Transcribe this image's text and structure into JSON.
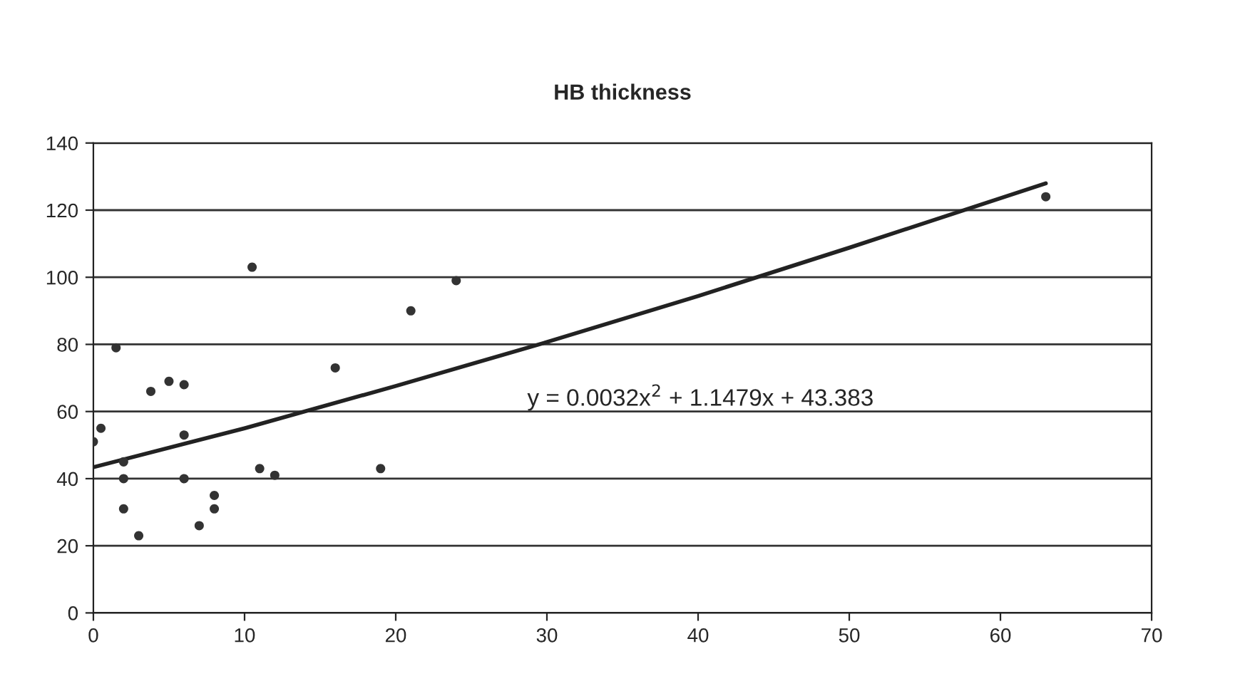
{
  "chart_data": {
    "type": "scatter",
    "title": "HB thickness",
    "xlim": [
      0,
      70
    ],
    "xticks": [
      0,
      10,
      20,
      30,
      40,
      50,
      60,
      70
    ],
    "ylim": [
      0,
      140
    ],
    "yticks": [
      0,
      20,
      40,
      60,
      80,
      100,
      120,
      140
    ],
    "grid": "y",
    "legend": false,
    "series": [
      {
        "marker": "circle",
        "color": "#333333",
        "x": [
          0,
          0.5,
          1.5,
          2,
          2,
          2,
          3,
          3.8,
          5,
          6,
          6,
          6,
          7,
          8,
          8,
          10.5,
          11,
          12,
          16,
          19,
          21,
          24,
          63
        ],
        "values": [
          51,
          55,
          79,
          45,
          40,
          31,
          23,
          66,
          69,
          68,
          53,
          40,
          26,
          35,
          31,
          103,
          43,
          41,
          73,
          43,
          90,
          99,
          124
        ]
      },
      {
        "type": "line",
        "color": "#222222",
        "marker": "none",
        "x": [
          0,
          10,
          20,
          30,
          40,
          50,
          63
        ],
        "values": [
          43.4,
          55,
          67.6,
          80.7,
          94.4,
          108.8,
          128
        ]
      }
    ],
    "annotations": [
      "y = 0.0032x$^{2}$ + 1.1479x + 43.383"
    ]
  }
}
